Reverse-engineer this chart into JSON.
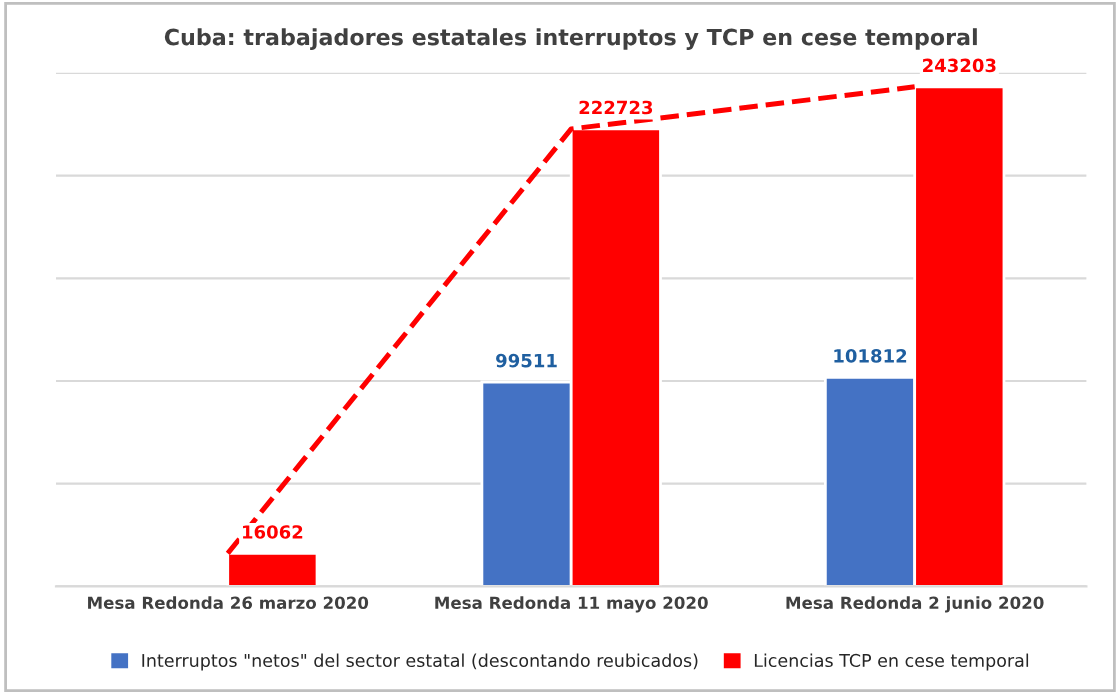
{
  "chart_data": {
    "type": "bar",
    "title": "Cuba: trabajadores estatales interruptos y TCP en cese temporal",
    "categories": [
      "Mesa Redonda 26 marzo 2020",
      "Mesa Redonda 11 mayo 2020",
      "Mesa Redonda 2 junio 2020"
    ],
    "series": [
      {
        "name": "Interruptos \"netos\" del sector estatal (descontando reubicados)",
        "color": "#4472c4",
        "values": [
          null,
          99511,
          101812
        ]
      },
      {
        "name": "Licencias TCP en cese temporal",
        "color": "#ff0000",
        "values": [
          16062,
          222723,
          243203
        ]
      },
      {
        "type": "line",
        "color": "#ff0000",
        "line_style": "dashed",
        "values": [
          16062,
          222723,
          243203
        ],
        "value_labels": [
          null,
          null,
          null
        ]
      }
    ],
    "ylim": [
      0,
      250000
    ],
    "yticks": [
      {
        "value": 0,
        "label": null
      },
      {
        "value": 50000,
        "label": null
      },
      {
        "value": 100000,
        "label": null
      },
      {
        "value": 150000,
        "label": null
      },
      {
        "value": 200000,
        "label": null
      },
      {
        "value": 250000,
        "label": null
      }
    ],
    "tick_labels": "x",
    "grid": "y",
    "data_labels": true,
    "legend": "bottom"
  }
}
